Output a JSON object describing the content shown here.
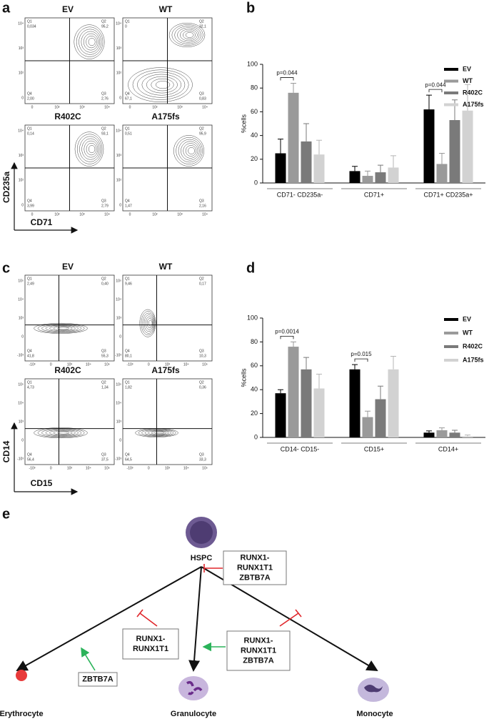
{
  "panel_labels": [
    "a",
    "b",
    "c",
    "d",
    "e"
  ],
  "flow_a": {
    "y_label": "CD235a",
    "x_label": "CD71",
    "yticks": [
      "0",
      "10²",
      "10³",
      "10⁴"
    ],
    "xticks": [
      "0",
      "10²",
      "10³",
      "10⁴"
    ],
    "plots": [
      {
        "title": "EV",
        "quadrants": [
          {
            "name": "Q1",
            "value": "0,034"
          },
          {
            "name": "Q2",
            "value": "95,2"
          },
          {
            "name": "Q3",
            "value": "2,76"
          },
          {
            "name": "Q4",
            "value": "2,00"
          }
        ]
      },
      {
        "title": "WT",
        "quadrants": [
          {
            "name": "Q1",
            "value": "0"
          },
          {
            "name": "Q2",
            "value": "32,1"
          },
          {
            "name": "Q3",
            "value": "0,83"
          },
          {
            "name": "Q4",
            "value": "67,1"
          }
        ]
      },
      {
        "title": "R402C",
        "quadrants": [
          {
            "name": "Q1",
            "value": "0,14"
          },
          {
            "name": "Q2",
            "value": "93,1"
          },
          {
            "name": "Q3",
            "value": "2,79"
          },
          {
            "name": "Q4",
            "value": "3,99"
          }
        ]
      },
      {
        "title": "A175fs",
        "quadrants": [
          {
            "name": "Q1",
            "value": "0,51"
          },
          {
            "name": "Q2",
            "value": "95,9"
          },
          {
            "name": "Q3",
            "value": "2,16"
          },
          {
            "name": "Q4",
            "value": "1,47"
          }
        ]
      }
    ]
  },
  "flow_c": {
    "y_label": "CD14",
    "x_label": "CD15",
    "yticks": [
      "-10³",
      "0",
      "10³",
      "10⁴",
      "10⁵"
    ],
    "xticks": [
      "-10³",
      "0",
      "10³",
      "10⁴",
      "10⁵"
    ],
    "plots": [
      {
        "title": "EV",
        "quadrants": [
          {
            "name": "Q1",
            "value": "2,49"
          },
          {
            "name": "Q2",
            "value": "0,40"
          },
          {
            "name": "Q3",
            "value": "55,3"
          },
          {
            "name": "Q4",
            "value": "41,8"
          }
        ]
      },
      {
        "title": "WT",
        "quadrants": [
          {
            "name": "Q1",
            "value": "9,46"
          },
          {
            "name": "Q2",
            "value": "0,17"
          },
          {
            "name": "Q3",
            "value": "10,3"
          },
          {
            "name": "Q4",
            "value": "80,1"
          }
        ]
      },
      {
        "title": "R402C",
        "quadrants": [
          {
            "name": "Q1",
            "value": "4,73"
          },
          {
            "name": "Q2",
            "value": "1,34"
          },
          {
            "name": "Q3",
            "value": "37,5"
          },
          {
            "name": "Q4",
            "value": "56,4"
          }
        ]
      },
      {
        "title": "A175fs",
        "quadrants": [
          {
            "name": "Q1",
            "value": "1,82"
          },
          {
            "name": "Q2",
            "value": "0,36"
          },
          {
            "name": "Q3",
            "value": "33,3"
          },
          {
            "name": "Q4",
            "value": "64,5"
          }
        ]
      }
    ]
  },
  "chart_data": [
    {
      "type": "bar",
      "ylabel": "%cells",
      "categories": [
        "CD71- CD235a-",
        "CD71+",
        "CD71+ CD235a+"
      ],
      "series": [
        {
          "name": "EV",
          "color": "#000000",
          "values": [
            25,
            10,
            62
          ],
          "errors": [
            12,
            4,
            12
          ]
        },
        {
          "name": "WT",
          "color": "#9a9a9a",
          "values": [
            76,
            6,
            16
          ],
          "errors": [
            8,
            4,
            9
          ]
        },
        {
          "name": "R402C",
          "color": "#7a7a7a",
          "values": [
            35,
            9,
            53
          ],
          "errors": [
            15,
            6,
            17
          ]
        },
        {
          "name": "A175fs",
          "color": "#d2d2d2",
          "values": [
            24,
            13,
            61
          ],
          "errors": [
            12,
            10,
            22
          ]
        }
      ],
      "pvalues": [
        "p=0.044",
        null,
        "p=0.044"
      ],
      "ylim": [
        0,
        100
      ],
      "yticks": [
        0,
        20,
        40,
        60,
        80,
        100
      ]
    },
    {
      "type": "bar",
      "ylabel": "%cells",
      "categories": [
        "CD14- CD15-",
        "CD15+",
        "CD14+"
      ],
      "series": [
        {
          "name": "EV",
          "color": "#000000",
          "values": [
            37,
            57,
            4
          ],
          "errors": [
            3,
            4,
            1.5
          ]
        },
        {
          "name": "WT",
          "color": "#9a9a9a",
          "values": [
            76,
            17,
            6
          ],
          "errors": [
            4,
            5,
            2
          ]
        },
        {
          "name": "R402C",
          "color": "#7a7a7a",
          "values": [
            57,
            32,
            4
          ],
          "errors": [
            10,
            11,
            2
          ]
        },
        {
          "name": "A175fs",
          "color": "#d2d2d2",
          "values": [
            41,
            57,
            1
          ],
          "errors": [
            12,
            11,
            1
          ]
        }
      ],
      "pvalues": [
        "p=0.0014",
        "p=0.015",
        null
      ],
      "ylim": [
        0,
        100
      ],
      "yticks": [
        0,
        20,
        40,
        60,
        80,
        100
      ]
    }
  ],
  "diagram": {
    "nodes": [
      {
        "label": "HSPC"
      },
      {
        "label": "Erythrocyte"
      },
      {
        "label": "Granulocyte"
      },
      {
        "label": "Monocyte"
      }
    ],
    "regulators": [
      {
        "lines": [
          "RUNX1-",
          "RUNX1T1",
          "ZBTB7A"
        ]
      },
      {
        "lines": [
          "RUNX1-",
          "RUNX1T1"
        ]
      },
      {
        "lines": [
          "ZBTB7A"
        ]
      },
      {
        "lines": [
          "RUNX1-",
          "RUNX1T1",
          "ZBTB7A"
        ]
      }
    ]
  }
}
